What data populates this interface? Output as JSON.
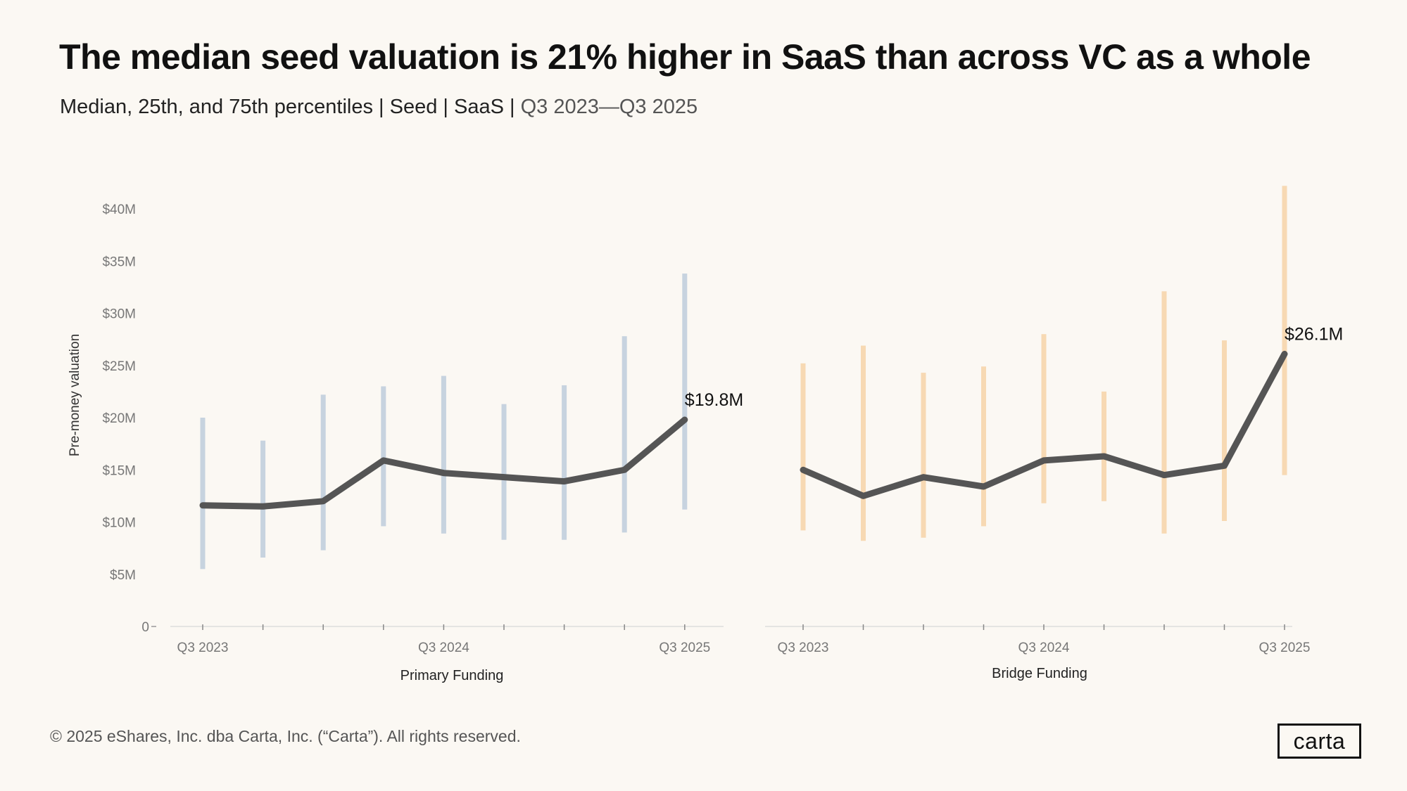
{
  "title": "The median seed valuation is 21% higher in SaaS than across VC as a whole",
  "subtitle": {
    "main": "Median, 25th, and 75th percentiles | Seed | SaaS | ",
    "range": "Q3 2023—Q3 2025"
  },
  "footer": "© 2025 eShares, Inc. dba Carta, Inc. (“Carta”). All rights reserved.",
  "logo_text": "carta",
  "colors": {
    "median_line": "#555555",
    "primary_range": "#c7d3df",
    "bridge_range": "#f7d9b3",
    "baseline": "#dddddd"
  },
  "chart_data": {
    "type": "line",
    "ylabel": "Pre-money valuation",
    "y_ticks": [
      {
        "value": 0,
        "label": "0"
      },
      {
        "value": 5,
        "label": "$5M"
      },
      {
        "value": 10,
        "label": "$10M"
      },
      {
        "value": 15,
        "label": "$15M"
      },
      {
        "value": 20,
        "label": "$20M"
      },
      {
        "value": 25,
        "label": "$25M"
      },
      {
        "value": 30,
        "label": "$30M"
      },
      {
        "value": 35,
        "label": "$35M"
      },
      {
        "value": 40,
        "label": "$40M"
      }
    ],
    "ylim": [
      0,
      43
    ],
    "y_unit": "$M",
    "grid": false,
    "panels": [
      {
        "name": "Primary Funding",
        "xlabel": "Primary Funding",
        "x": [
          "Q3 2023",
          "Q4 2023",
          "Q1 2024",
          "Q2 2024",
          "Q3 2024",
          "Q4 2024",
          "Q1 2025",
          "Q2 2025",
          "Q3 2025"
        ],
        "x_tick_labels": [
          "Q3 2023",
          "",
          "",
          "",
          "Q3 2024",
          "",
          "",
          "",
          "Q3 2025"
        ],
        "median": [
          11.6,
          11.5,
          12.0,
          15.9,
          14.7,
          14.3,
          13.9,
          15.0,
          19.8
        ],
        "p25": [
          5.5,
          6.6,
          7.3,
          9.6,
          8.9,
          8.3,
          8.3,
          9.0,
          11.2
        ],
        "p75": [
          20.0,
          17.8,
          22.2,
          23.0,
          24.0,
          21.3,
          23.1,
          27.8,
          33.8
        ],
        "last_label": "$19.8M"
      },
      {
        "name": "Bridge Funding",
        "xlabel": "Bridge Funding",
        "x": [
          "Q3 2023",
          "Q4 2023",
          "Q1 2024",
          "Q2 2024",
          "Q3 2024",
          "Q4 2024",
          "Q1 2025",
          "Q2 2025",
          "Q3 2025"
        ],
        "x_tick_labels": [
          "Q3 2023",
          "",
          "",
          "",
          "Q3 2024",
          "",
          "",
          "",
          "Q3 2025"
        ],
        "median": [
          15.0,
          12.5,
          14.3,
          13.4,
          15.9,
          16.3,
          14.5,
          15.4,
          26.1
        ],
        "p25": [
          9.2,
          8.2,
          8.5,
          9.6,
          11.8,
          12.0,
          8.9,
          10.1,
          14.5
        ],
        "p75": [
          25.2,
          26.9,
          24.3,
          24.9,
          28.0,
          22.5,
          32.1,
          27.4,
          42.2
        ],
        "last_label": "$26.1M"
      }
    ]
  }
}
